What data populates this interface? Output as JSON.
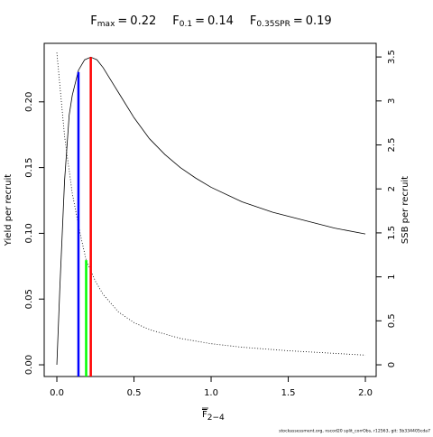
{
  "chart_data": {
    "type": "line",
    "title_items": [
      {
        "symbol": "F",
        "subscript": "max",
        "sign": "=",
        "value": "0.22"
      },
      {
        "symbol": "F",
        "subscript": "0.1",
        "sign": "=",
        "value": "0.14"
      },
      {
        "symbol": "F",
        "subscript": "0.35SPR",
        "sign": "=",
        "value": "0.19"
      }
    ],
    "x_label": {
      "symbol": "F",
      "subscript": "2−4"
    },
    "y_label": "Yield per recruit",
    "y2_label": "SSB per recruit",
    "footer": "stockassessment.org, nscod20 split_corrObs, r12563, git: 5b334405cda7",
    "xlim": [
      -0.082,
      2.07
    ],
    "xticks": [
      {
        "value": 0,
        "label": "0.0"
      },
      0.5,
      {
        "value": 1,
        "label": "1.0"
      },
      1.5,
      {
        "value": 2,
        "label": "2.0"
      }
    ],
    "ylim": [
      -0.0089,
      0.2445
    ],
    "yticks": [
      {
        "value": 0,
        "label": "0.00"
      },
      0.05,
      {
        "value": 0.1,
        "label": "0.10"
      },
      0.15,
      {
        "value": 0.2,
        "label": "0.20"
      }
    ],
    "y2lim": [
      -0.133,
      3.655
    ],
    "y2ticks": [
      0,
      0.5,
      1,
      1.5,
      2,
      2.5,
      3,
      3.5
    ],
    "series": [
      {
        "name": "Yield per recruit",
        "color": "#000000",
        "dash": "solid",
        "x": [
          0,
          0.02,
          0.05,
          0.08,
          0.1,
          0.14,
          0.18,
          0.22,
          0.26,
          0.3,
          0.4,
          0.5,
          0.6,
          0.7,
          0.8,
          0.9,
          1.0,
          1.2,
          1.4,
          1.6,
          1.8,
          2.0
        ],
        "values": [
          0,
          0.06,
          0.14,
          0.19,
          0.205,
          0.224,
          0.232,
          0.234,
          0.232,
          0.226,
          0.207,
          0.188,
          0.172,
          0.16,
          0.15,
          0.142,
          0.135,
          0.124,
          0.116,
          0.11,
          0.104,
          0.0995
        ]
      },
      {
        "name": "SSB per recruit",
        "color": "#000000",
        "dash": "dotted",
        "axis": "y2",
        "x": [
          0,
          0.05,
          0.1,
          0.15,
          0.19,
          0.25,
          0.3,
          0.4,
          0.5,
          0.6,
          0.8,
          1.0,
          1.2,
          1.5,
          2.0
        ],
        "values": [
          3.55,
          2.6,
          1.95,
          1.5,
          1.19,
          0.95,
          0.8,
          0.6,
          0.48,
          0.4,
          0.3,
          0.24,
          0.2,
          0.16,
          0.11
        ]
      }
    ],
    "reference_lines": [
      {
        "x": 0.22,
        "y": 0.234,
        "color": "#ff0000"
      },
      {
        "x": 0.14,
        "y": 0.2227,
        "color": "#0000ff"
      },
      {
        "x": 0.19,
        "y": 1.19,
        "color": "#00ff00",
        "axis": "y2"
      }
    ]
  }
}
